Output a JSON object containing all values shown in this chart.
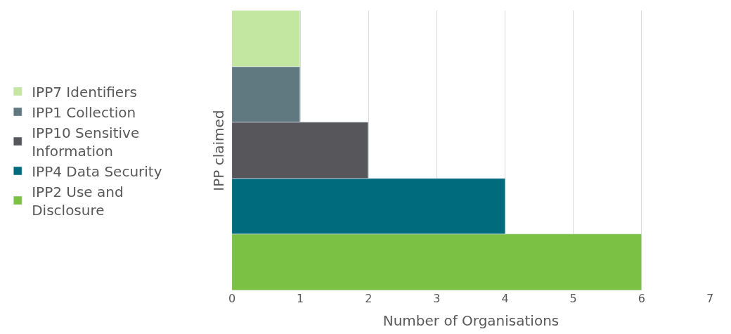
{
  "chart_data": {
    "type": "bar",
    "orientation": "horizontal",
    "xlabel": "Number of Organisations",
    "ylabel": "IPP claimed",
    "categories": [
      null
    ],
    "series": [
      {
        "name": "IPP7 Identifiers",
        "color": "#c3e6a0",
        "values": [
          1
        ]
      },
      {
        "name": "IPP1 Collection",
        "color": "#607880",
        "values": [
          1
        ]
      },
      {
        "name": "IPP10 Sensitive\nInformation",
        "color": "#57575b",
        "values": [
          2
        ]
      },
      {
        "name": "IPP4 Data Security",
        "color": "#006b7d",
        "values": [
          4
        ]
      },
      {
        "name": "IPP2 Use and\nDisclosure",
        "color": "#7bc143",
        "values": [
          6
        ]
      }
    ],
    "xlim": [
      0,
      7
    ],
    "xticks": [
      0,
      1,
      2,
      3,
      4,
      5,
      6,
      7
    ],
    "grid": "x",
    "legend": "left"
  }
}
